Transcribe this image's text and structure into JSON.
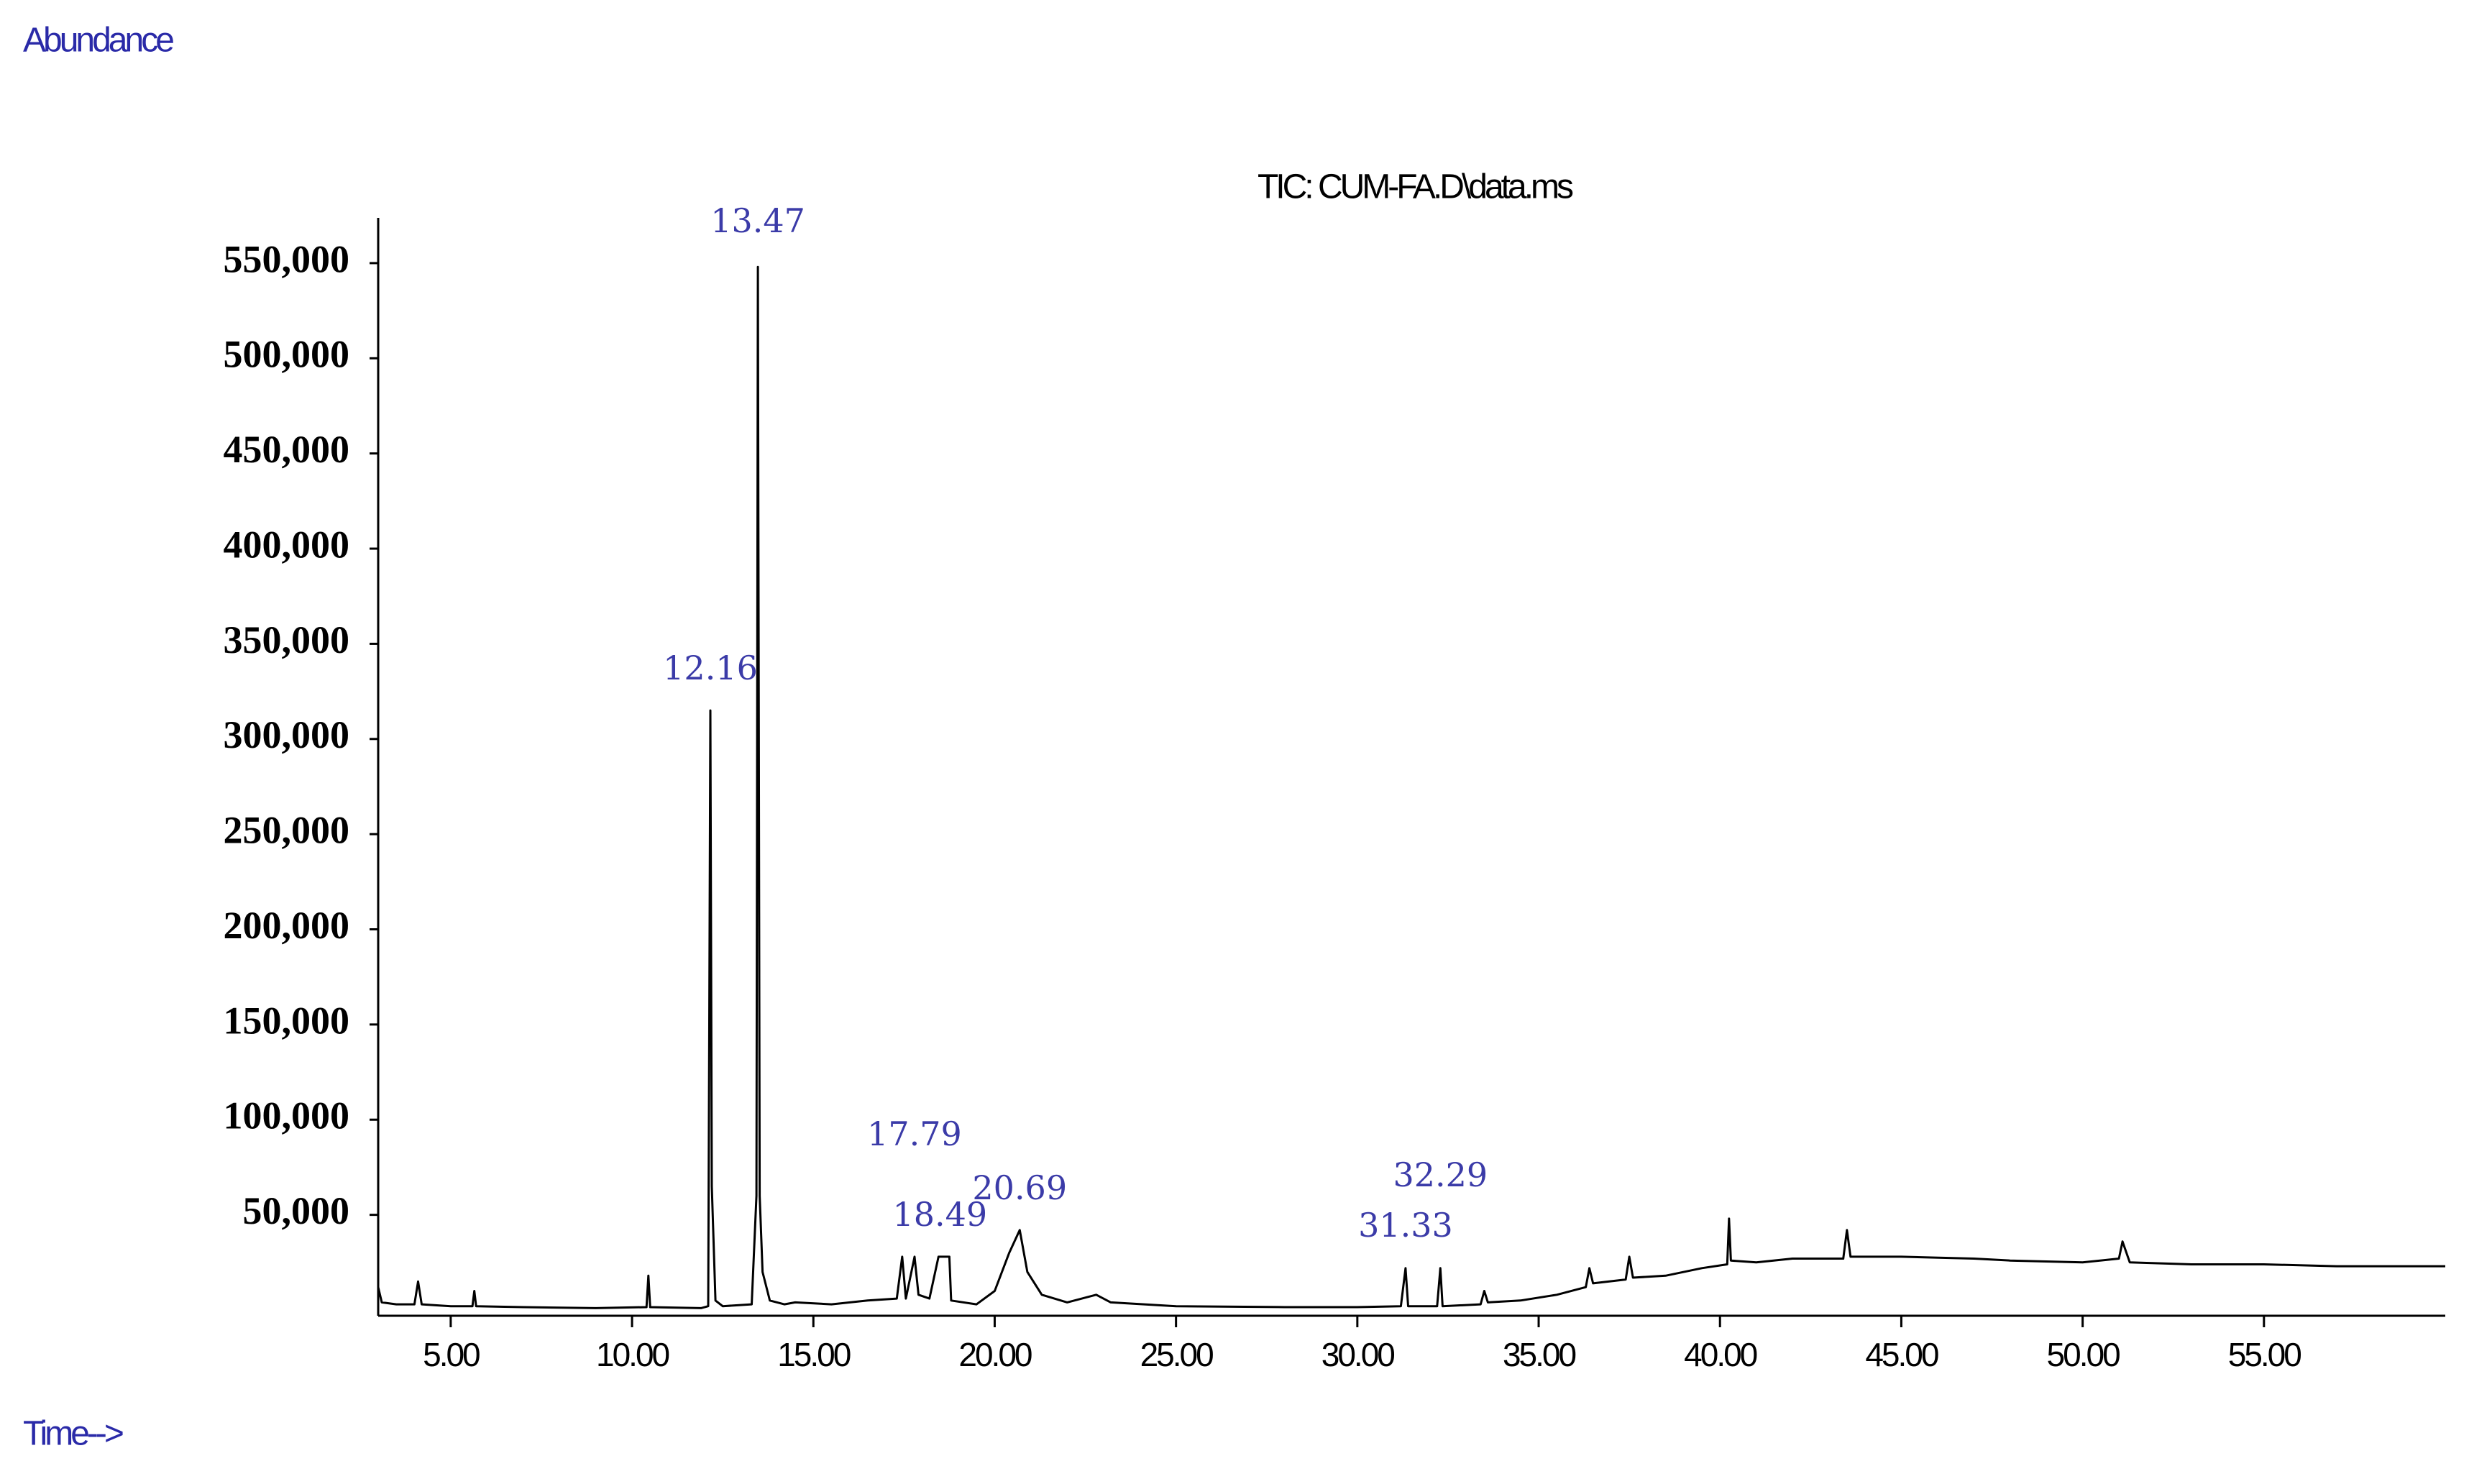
{
  "chart_data": {
    "type": "line",
    "title": "TIC: CUM-FA.D\\data.ms",
    "y_label": "Abundance",
    "x_label": "Time-->",
    "color": "#000000",
    "label_color": "#3b3ba8",
    "xlim": [
      3,
      60
    ],
    "ylim": [
      0,
      570000
    ],
    "xticks": [
      {
        "value": 5,
        "label": "5.00"
      },
      {
        "value": 10,
        "label": "10.00"
      },
      {
        "value": 15,
        "label": "15.00"
      },
      {
        "value": 20,
        "label": "20.00"
      },
      {
        "value": 25,
        "label": "25.00"
      },
      {
        "value": 30,
        "label": "30.00"
      },
      {
        "value": 35,
        "label": "35.00"
      },
      {
        "value": 40,
        "label": "40.00"
      },
      {
        "value": 45,
        "label": "45.00"
      },
      {
        "value": 50,
        "label": "50.00"
      },
      {
        "value": 55,
        "label": "55.00"
      }
    ],
    "yticks": [
      {
        "value": 50000,
        "label": "50,000"
      },
      {
        "value": 100000,
        "label": "100,000"
      },
      {
        "value": 150000,
        "label": "150,000"
      },
      {
        "value": 200000,
        "label": "200,000"
      },
      {
        "value": 250000,
        "label": "250,000"
      },
      {
        "value": 300000,
        "label": "300,000"
      },
      {
        "value": 350000,
        "label": "350,000"
      },
      {
        "value": 400000,
        "label": "400,000"
      },
      {
        "value": 450000,
        "label": "450,000"
      },
      {
        "value": 500000,
        "label": "500,000"
      },
      {
        "value": 550000,
        "label": "550,000"
      }
    ],
    "peak_labels": [
      12.16,
      13.47,
      17.79,
      18.49,
      20.69,
      31.33,
      32.29
    ],
    "x": [
      3.0,
      3.1,
      3.5,
      4.0,
      4.1,
      4.2,
      5.0,
      5.6,
      5.65,
      5.7,
      7.0,
      9.0,
      10.4,
      10.45,
      10.5,
      11.9,
      12.1,
      12.13,
      12.16,
      12.2,
      12.3,
      12.5,
      13.3,
      13.43,
      13.47,
      13.52,
      13.6,
      13.8,
      14.2,
      14.5,
      15.5,
      16.5,
      17.3,
      17.45,
      17.55,
      17.79,
      17.9,
      18.2,
      18.45,
      18.49,
      18.6,
      18.75,
      18.8,
      19.5,
      20.0,
      20.4,
      20.69,
      20.9,
      21.3,
      22.0,
      22.8,
      23.2,
      25.0,
      28.0,
      30.0,
      31.2,
      31.33,
      31.4,
      32.2,
      32.29,
      32.35,
      33.4,
      33.5,
      33.6,
      34.5,
      35.5,
      36.3,
      36.4,
      36.5,
      37.4,
      37.5,
      37.6,
      38.5,
      39.5,
      40.2,
      40.25,
      40.3,
      41.0,
      42.0,
      43.4,
      43.5,
      43.6,
      45.0,
      47.0,
      48.0,
      50.0,
      51.0,
      51.1,
      51.3,
      53.0,
      55.0,
      57.0,
      59.0,
      60.0
    ],
    "values": [
      12000,
      4000,
      3000,
      3000,
      15000,
      3000,
      2000,
      2000,
      10000,
      2000,
      1500,
      1000,
      1500,
      18000,
      1500,
      1000,
      2000,
      150000,
      315000,
      65000,
      5000,
      2000,
      3000,
      60000,
      548000,
      60000,
      20000,
      5000,
      3000,
      4000,
      3000,
      5000,
      6000,
      28000,
      6000,
      28000,
      8000,
      6000,
      28000,
      28000,
      28000,
      28000,
      5000,
      3000,
      10000,
      30000,
      42000,
      20000,
      8000,
      4000,
      8000,
      4000,
      2000,
      1500,
      1500,
      2000,
      22000,
      2000,
      2000,
      22000,
      2000,
      3000,
      10000,
      4000,
      5000,
      8000,
      12000,
      22000,
      14000,
      16000,
      28000,
      17000,
      18000,
      22000,
      24000,
      48000,
      26000,
      25000,
      27000,
      27000,
      42000,
      28000,
      28000,
      27000,
      26000,
      25000,
      27000,
      36000,
      25000,
      24000,
      24000,
      23000,
      23000,
      23000
    ]
  }
}
